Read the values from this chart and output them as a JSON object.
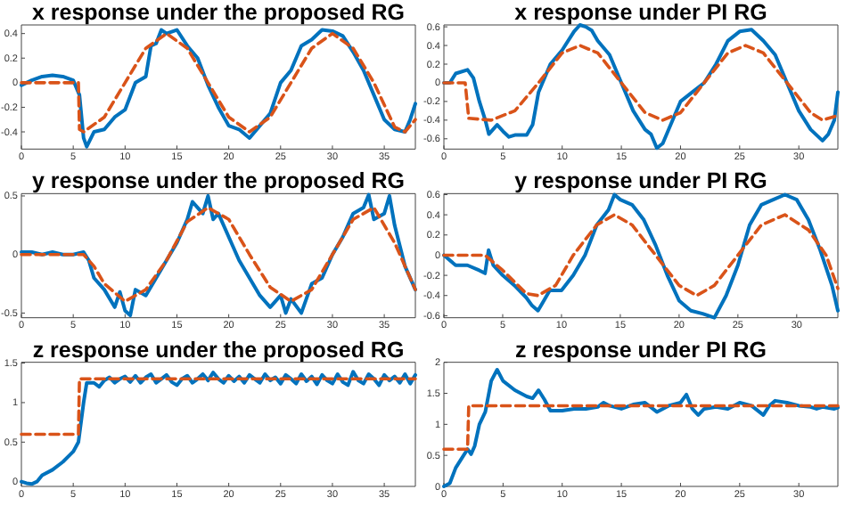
{
  "chart_data": [
    {
      "type": "line",
      "title": "x response under the proposed RG",
      "xlim": [
        0,
        38
      ],
      "xticks": [
        0,
        5,
        10,
        15,
        20,
        25,
        30,
        35
      ],
      "ylim": [
        -0.54,
        0.47
      ],
      "yticks": [
        -0.4,
        -0.2,
        0,
        0.2,
        0.4
      ],
      "grid": false,
      "series": [
        {
          "color": "#0072bd",
          "line_style": "solid",
          "x": [
            0,
            1,
            2,
            3,
            4,
            5,
            5.6,
            6,
            6.3,
            7,
            8,
            9,
            10,
            11,
            12,
            12.5,
            13,
            13.5,
            14,
            15,
            16,
            17,
            18,
            19,
            20,
            21,
            22,
            23,
            24,
            25,
            26,
            27,
            28,
            29,
            30,
            31,
            32,
            33,
            34,
            35,
            36,
            37,
            37.5,
            38
          ],
          "values": [
            -0.02,
            0.02,
            0.05,
            0.06,
            0.05,
            0.02,
            -0.1,
            -0.45,
            -0.52,
            -0.4,
            -0.38,
            -0.28,
            -0.22,
            0,
            0.05,
            0.3,
            0.32,
            0.43,
            0.4,
            0.43,
            0.3,
            0.2,
            -0.02,
            -0.2,
            -0.35,
            -0.38,
            -0.45,
            -0.35,
            -0.25,
            0,
            0.1,
            0.3,
            0.35,
            0.43,
            0.42,
            0.38,
            0.25,
            0.1,
            -0.1,
            -0.3,
            -0.38,
            -0.4,
            -0.3,
            -0.17
          ]
        },
        {
          "color": "#d95319",
          "line_style": "dashed",
          "x": [
            0,
            5.5,
            5.6,
            6,
            8,
            10,
            12,
            14,
            16,
            18,
            20,
            22,
            24,
            26,
            28,
            30,
            32,
            34,
            36,
            37,
            38
          ],
          "values": [
            0,
            0,
            -0.38,
            -0.4,
            -0.28,
            0,
            0.28,
            0.4,
            0.28,
            0,
            -0.28,
            -0.4,
            -0.28,
            0,
            0.28,
            0.4,
            0.28,
            0,
            -0.36,
            -0.4,
            -0.3
          ]
        }
      ]
    },
    {
      "type": "line",
      "title": "x response under PI RG",
      "xlim": [
        0,
        33.3
      ],
      "xticks": [
        0,
        5,
        10,
        15,
        20,
        25,
        30
      ],
      "ylim": [
        -0.71,
        0.62
      ],
      "yticks": [
        -0.6,
        -0.4,
        -0.2,
        0,
        0.2,
        0.4,
        0.6
      ],
      "grid": false,
      "series": [
        {
          "color": "#0072bd",
          "line_style": "solid",
          "x": [
            0,
            0.5,
            1,
            2,
            2.5,
            3,
            3.5,
            3.8,
            4.5,
            5,
            5.5,
            6,
            7,
            7.5,
            8,
            9,
            10,
            11,
            11.5,
            12,
            12.5,
            13,
            14,
            15,
            16,
            17,
            17.5,
            18,
            18.5,
            19,
            20,
            21,
            22,
            23,
            24,
            25,
            26,
            27,
            28,
            29,
            30,
            31,
            32,
            32.5,
            33,
            33.3
          ],
          "values": [
            0,
            0,
            0.1,
            0.14,
            0.05,
            -0.2,
            -0.4,
            -0.55,
            -0.45,
            -0.52,
            -0.58,
            -0.56,
            -0.56,
            -0.45,
            -0.1,
            0.2,
            0.35,
            0.55,
            0.62,
            0.6,
            0.56,
            0.45,
            0.3,
            0,
            -0.3,
            -0.5,
            -0.55,
            -0.7,
            -0.65,
            -0.5,
            -0.2,
            -0.1,
            0,
            0.2,
            0.45,
            0.55,
            0.57,
            0.45,
            0.3,
            0,
            -0.3,
            -0.5,
            -0.62,
            -0.55,
            -0.4,
            -0.1
          ]
        },
        {
          "color": "#d95319",
          "line_style": "dashed",
          "x": [
            0,
            1.8,
            2.1,
            4,
            6,
            8,
            10,
            11.5,
            13,
            15,
            17,
            18.5,
            20,
            22,
            24,
            25.5,
            27,
            29,
            31,
            32,
            33.3
          ],
          "values": [
            0,
            0,
            -0.38,
            -0.4,
            -0.3,
            0,
            0.32,
            0.4,
            0.32,
            0,
            -0.32,
            -0.4,
            -0.32,
            0,
            0.32,
            0.4,
            0.32,
            0,
            -0.32,
            -0.4,
            -0.35
          ]
        }
      ]
    },
    {
      "type": "line",
      "title": "y response under the proposed RG",
      "xlim": [
        0,
        38
      ],
      "xticks": [
        0,
        5,
        10,
        15,
        20,
        25,
        30,
        35
      ],
      "ylim": [
        -0.54,
        0.52
      ],
      "yticks": [
        -0.5,
        0,
        0.5
      ],
      "grid": false,
      "series": [
        {
          "color": "#0072bd",
          "line_style": "solid",
          "x": [
            0,
            1,
            2,
            3,
            4,
            5,
            6,
            6.5,
            7,
            8,
            9,
            9.5,
            10,
            10.5,
            11,
            12,
            13,
            14,
            15,
            16,
            16.5,
            17,
            17.5,
            18,
            18.5,
            19,
            20,
            21,
            22,
            23,
            24,
            25,
            25.5,
            26,
            27,
            28,
            29,
            30,
            31,
            32,
            33,
            33.5,
            34,
            35,
            35.5,
            36,
            37,
            38
          ],
          "values": [
            0.02,
            0.02,
            0,
            0.02,
            0,
            0,
            0.02,
            -0.05,
            -0.2,
            -0.3,
            -0.45,
            -0.32,
            -0.48,
            -0.52,
            -0.3,
            -0.35,
            -0.2,
            -0.05,
            0.1,
            0.3,
            0.45,
            0.4,
            0.35,
            0.5,
            0.3,
            0.35,
            0.15,
            -0.05,
            -0.2,
            -0.35,
            -0.45,
            -0.35,
            -0.5,
            -0.38,
            -0.5,
            -0.25,
            -0.2,
            0,
            0.15,
            0.35,
            0.4,
            0.51,
            0.3,
            0.35,
            0.5,
            0.25,
            -0.1,
            -0.3
          ]
        },
        {
          "color": "#d95319",
          "line_style": "dashed",
          "x": [
            0,
            6,
            7,
            8,
            10,
            12,
            14,
            16,
            18,
            20,
            22,
            24,
            26,
            28,
            30,
            32,
            34,
            36,
            38
          ],
          "values": [
            0,
            0,
            -0.1,
            -0.25,
            -0.4,
            -0.3,
            -0.05,
            0.28,
            0.4,
            0.3,
            0,
            -0.28,
            -0.4,
            -0.3,
            0,
            0.3,
            0.4,
            0.1,
            -0.3
          ]
        }
      ]
    },
    {
      "type": "line",
      "title": "y response under PI RG",
      "xlim": [
        0,
        33.5
      ],
      "xticks": [
        0,
        5,
        10,
        15,
        20,
        25,
        30
      ],
      "ylim": [
        -0.62,
        0.61
      ],
      "yticks": [
        -0.6,
        -0.4,
        -0.2,
        0,
        0.2,
        0.4,
        0.6
      ],
      "grid": false,
      "series": [
        {
          "color": "#0072bd",
          "line_style": "solid",
          "x": [
            0,
            1,
            2,
            3,
            3.5,
            3.8,
            4.2,
            5,
            6,
            7,
            7.5,
            8,
            8.5,
            9,
            10,
            11,
            12,
            13,
            14,
            14.5,
            15,
            16,
            17,
            18,
            19,
            20,
            21,
            22,
            23,
            24,
            25,
            26,
            27,
            28,
            29,
            30,
            31,
            32,
            33,
            33.5
          ],
          "values": [
            0,
            -0.1,
            -0.1,
            -0.15,
            -0.18,
            0.05,
            -0.1,
            -0.2,
            -0.3,
            -0.42,
            -0.5,
            -0.55,
            -0.45,
            -0.35,
            -0.35,
            -0.2,
            0,
            0.3,
            0.45,
            0.6,
            0.55,
            0.5,
            0.35,
            0.1,
            -0.2,
            -0.45,
            -0.55,
            -0.58,
            -0.62,
            -0.4,
            -0.1,
            0.3,
            0.5,
            0.55,
            0.6,
            0.55,
            0.35,
            0.05,
            -0.3,
            -0.55
          ]
        },
        {
          "color": "#d95319",
          "line_style": "dashed",
          "x": [
            0,
            3.5,
            5,
            7,
            8,
            9.5,
            11,
            13,
            14.5,
            16,
            18,
            20,
            21.5,
            23,
            25,
            27,
            29,
            31,
            32.5,
            33.5
          ],
          "values": [
            0,
            0,
            -0.15,
            -0.38,
            -0.4,
            -0.3,
            0,
            0.3,
            0.4,
            0.3,
            0,
            -0.3,
            -0.4,
            -0.3,
            0,
            0.3,
            0.4,
            0.25,
            0,
            -0.33
          ]
        }
      ]
    },
    {
      "type": "line",
      "title": "z response under the proposed RG",
      "xlim": [
        0,
        38
      ],
      "xticks": [
        0,
        5,
        10,
        15,
        20,
        25,
        30,
        35
      ],
      "ylim": [
        -0.06,
        1.51
      ],
      "yticks": [
        0,
        0.5,
        1,
        1.5
      ],
      "grid": false,
      "series": [
        {
          "color": "#0072bd",
          "line_style": "solid",
          "x": [
            0,
            0.5,
            1,
            1.5,
            2,
            3,
            4,
            5,
            5.5,
            6,
            6.3,
            7,
            7.5,
            8,
            8.5,
            9,
            9.5,
            10,
            10.5,
            11,
            11.5,
            12,
            12.5,
            13,
            13.5,
            14,
            14.5,
            15,
            15.5,
            16,
            16.5,
            17,
            17.5,
            18,
            18.5,
            19,
            19.5,
            20,
            20.5,
            21,
            21.5,
            22,
            22.5,
            23,
            23.5,
            24,
            24.5,
            25,
            25.5,
            26,
            26.5,
            27,
            27.5,
            28,
            28.5,
            29,
            29.5,
            30,
            30.5,
            31,
            31.5,
            32,
            32.5,
            33,
            33.5,
            34,
            34.5,
            35,
            35.5,
            36,
            36.5,
            37,
            37.5,
            38
          ],
          "values": [
            0,
            -0.02,
            -0.03,
            0,
            0.08,
            0.15,
            0.25,
            0.38,
            0.5,
            1,
            1.25,
            1.25,
            1.2,
            1.28,
            1.32,
            1.25,
            1.3,
            1.33,
            1.26,
            1.34,
            1.25,
            1.32,
            1.36,
            1.25,
            1.3,
            1.35,
            1.26,
            1.22,
            1.3,
            1.34,
            1.25,
            1.3,
            1.36,
            1.28,
            1.38,
            1.3,
            1.25,
            1.34,
            1.27,
            1.33,
            1.25,
            1.35,
            1.3,
            1.25,
            1.36,
            1.28,
            1.32,
            1.24,
            1.35,
            1.3,
            1.24,
            1.36,
            1.27,
            1.33,
            1.23,
            1.35,
            1.28,
            1.24,
            1.36,
            1.26,
            1.22,
            1.39,
            1.28,
            1.24,
            1.36,
            1.3,
            1.22,
            1.35,
            1.28,
            1.33,
            1.25,
            1.36,
            1.24,
            1.35
          ]
        },
        {
          "color": "#d95319",
          "line_style": "dashed",
          "x": [
            0,
            5.5,
            5.6,
            38
          ],
          "values": [
            0.6,
            0.6,
            1.3,
            1.3
          ]
        }
      ]
    },
    {
      "type": "line",
      "title": "z response under PI RG",
      "xlim": [
        0,
        33.3
      ],
      "xticks": [
        0,
        5,
        10,
        15,
        20,
        25,
        30
      ],
      "ylim": [
        0,
        2
      ],
      "yticks": [
        0,
        0.5,
        1,
        1.5,
        2
      ],
      "grid": false,
      "series": [
        {
          "color": "#0072bd",
          "line_style": "solid",
          "x": [
            0,
            0.5,
            1,
            1.5,
            2,
            2.3,
            2.6,
            3,
            3.5,
            4,
            4.5,
            5,
            6,
            7,
            7.5,
            8,
            8.5,
            9,
            10,
            11,
            12,
            13,
            13.5,
            14,
            15,
            16,
            17,
            18,
            19,
            20,
            20.5,
            21,
            21.5,
            22,
            23,
            24,
            25,
            26,
            27,
            27.5,
            28,
            29,
            30,
            31,
            31.5,
            32,
            33,
            33.3
          ],
          "values": [
            0,
            0.05,
            0.3,
            0.45,
            0.6,
            0.52,
            0.65,
            1,
            1.2,
            1.7,
            1.88,
            1.7,
            1.55,
            1.45,
            1.42,
            1.55,
            1.4,
            1.22,
            1.22,
            1.25,
            1.25,
            1.28,
            1.35,
            1.3,
            1.25,
            1.32,
            1.35,
            1.2,
            1.3,
            1.35,
            1.48,
            1.25,
            1.15,
            1.25,
            1.28,
            1.25,
            1.35,
            1.3,
            1.15,
            1.3,
            1.38,
            1.35,
            1.3,
            1.28,
            1.25,
            1.28,
            1.25,
            1.27
          ]
        },
        {
          "color": "#d95319",
          "line_style": "dashed",
          "x": [
            0,
            2,
            2.1,
            33.3
          ],
          "values": [
            0.6,
            0.6,
            1.3,
            1.3
          ]
        }
      ]
    }
  ]
}
